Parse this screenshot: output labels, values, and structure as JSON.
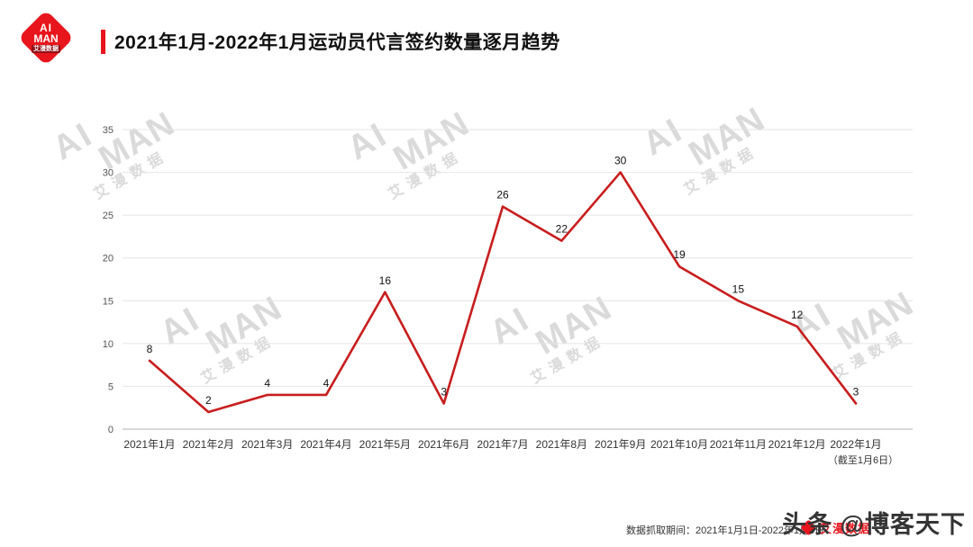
{
  "header": {
    "logo": {
      "line1": "AI",
      "line2": "MAN",
      "line3": "艾漫数据"
    },
    "title": "2021年1月-2022年1月运动员代言签约数量逐月趋势"
  },
  "watermark": {
    "line1": "AI",
    "line2": "MAN",
    "line3": "艾漫数据"
  },
  "chart_data": {
    "type": "line",
    "title": "2021年1月-2022年1月运动员代言签约数量逐月趋势",
    "categories": [
      "2021年1月",
      "2021年2月",
      "2021年3月",
      "2021年4月",
      "2021年5月",
      "2021年6月",
      "2021年7月",
      "2021年8月",
      "2021年9月",
      "2021年10月",
      "2021年11月",
      "2021年12月",
      "2022年1月"
    ],
    "values": [
      8,
      2,
      4,
      4,
      16,
      3,
      26,
      22,
      30,
      19,
      15,
      12,
      3
    ],
    "x_note": "（截至1月6日）",
    "xlabel": "",
    "ylabel": "",
    "ylim": [
      0,
      35
    ],
    "yticks": [
      0,
      5,
      10,
      15,
      20,
      25,
      30,
      35
    ],
    "line_color": "#c81d1d",
    "grid": true,
    "legend": false
  },
  "footer": {
    "data_note": "数据抓取期间：2021年1月1日-2022年1月6日",
    "logo_text": "艾漫数据",
    "social": "头条 @博客天下"
  }
}
